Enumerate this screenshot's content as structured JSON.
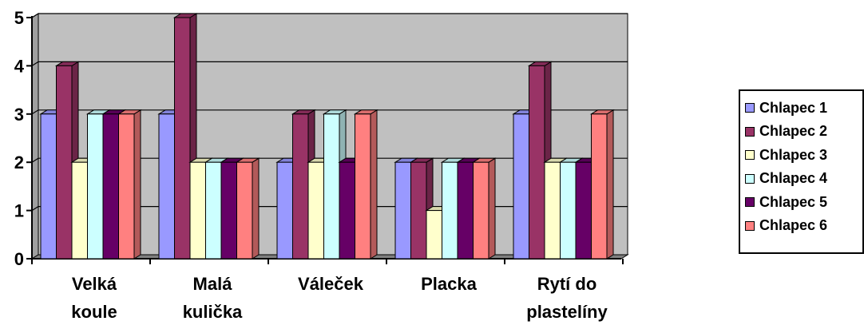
{
  "chart_data": {
    "type": "bar",
    "title": "",
    "xlabel": "",
    "ylabel": "",
    "ylim": [
      0,
      5
    ],
    "yticks": [
      0,
      1,
      2,
      3,
      4,
      5
    ],
    "grid": true,
    "legend_position": "right",
    "categories": [
      [
        "Velká",
        "koule"
      ],
      [
        "Malá",
        "kulička"
      ],
      [
        "Váleček"
      ],
      [
        "Placka"
      ],
      [
        "Rytí do",
        "plastelíny"
      ]
    ],
    "series": [
      {
        "name": "Chlapec 1",
        "color": "#9999ff",
        "values": [
          3,
          3,
          2,
          2,
          3
        ]
      },
      {
        "name": "Chlapec 2",
        "color": "#993366",
        "values": [
          4,
          5,
          3,
          2,
          4
        ]
      },
      {
        "name": "Chlapec 3",
        "color": "#ffffcc",
        "values": [
          2,
          2,
          2,
          1,
          2
        ]
      },
      {
        "name": "Chlapec 4",
        "color": "#ccffff",
        "values": [
          3,
          2,
          3,
          2,
          2
        ]
      },
      {
        "name": "Chlapec 5",
        "color": "#660066",
        "values": [
          3,
          2,
          2,
          2,
          2
        ]
      },
      {
        "name": "Chlapec 6",
        "color": "#ff8080",
        "values": [
          3,
          2,
          3,
          2,
          3
        ]
      }
    ],
    "plot_background": "#c0c0c0"
  }
}
